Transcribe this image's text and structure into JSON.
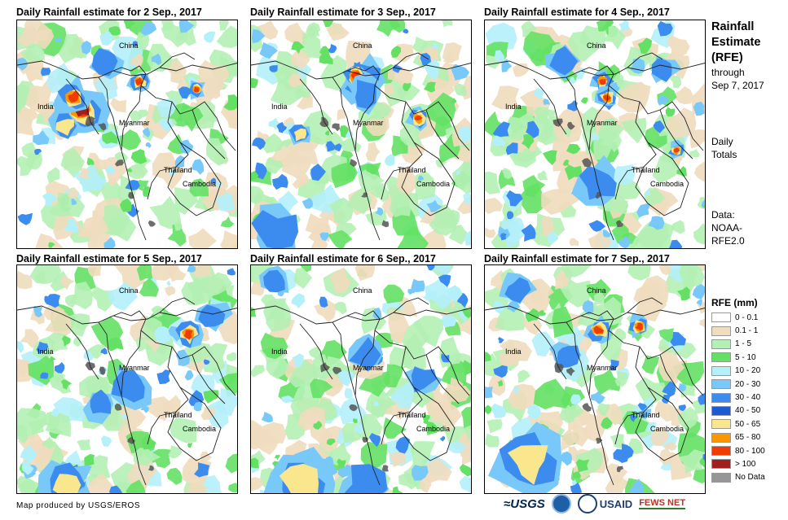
{
  "panels": [
    {
      "title": "Daily Rainfall estimate for 2 Sep., 2017"
    },
    {
      "title": "Daily Rainfall estimate for 3 Sep., 2017"
    },
    {
      "title": "Daily Rainfall estimate for 4 Sep., 2017"
    },
    {
      "title": "Daily Rainfall estimate for 5 Sep., 2017"
    },
    {
      "title": "Daily Rainfall estimate for 6 Sep., 2017"
    },
    {
      "title": "Daily Rainfall estimate for 7 Sep., 2017"
    }
  ],
  "countries": {
    "china": "China",
    "india": "India",
    "myanmar": "Myanmar",
    "thailand": "Thailand",
    "cambodia": "Cambodia"
  },
  "sidebar": {
    "title_line1": "Rainfall",
    "title_line2": "Estimate",
    "title_line3": "(RFE)",
    "through": "through",
    "date": "Sep 7, 2017",
    "daily": "Daily",
    "totals": "Totals",
    "data_label": "Data:",
    "data_src1": "NOAA-",
    "data_src2": "RFE2.0"
  },
  "legend": {
    "title": "RFE (mm)",
    "items": [
      {
        "label": "0 - 0.1",
        "color": "#ffffff"
      },
      {
        "label": "0.1 - 1",
        "color": "#f0dcbe"
      },
      {
        "label": "1 - 5",
        "color": "#b4f0b4"
      },
      {
        "label": "5 - 10",
        "color": "#64e164"
      },
      {
        "label": "10 - 20",
        "color": "#b4f0fa"
      },
      {
        "label": "20 - 30",
        "color": "#78c8fa"
      },
      {
        "label": "30 - 40",
        "color": "#3c8cf0"
      },
      {
        "label": "40 - 50",
        "color": "#1e5ad2"
      },
      {
        "label": "50 - 65",
        "color": "#fae68c"
      },
      {
        "label": "65 - 80",
        "color": "#fa9600"
      },
      {
        "label": "80 - 100",
        "color": "#f03c00"
      },
      {
        "label": "> 100",
        "color": "#a01e1e"
      },
      {
        "label": "No Data",
        "color": "#969696"
      }
    ]
  },
  "footer": {
    "credit": "Map produced by USGS/EROS"
  },
  "logos": {
    "usgs": "≈USGS",
    "usaid": "USAID",
    "fews": "FEWS NET"
  }
}
